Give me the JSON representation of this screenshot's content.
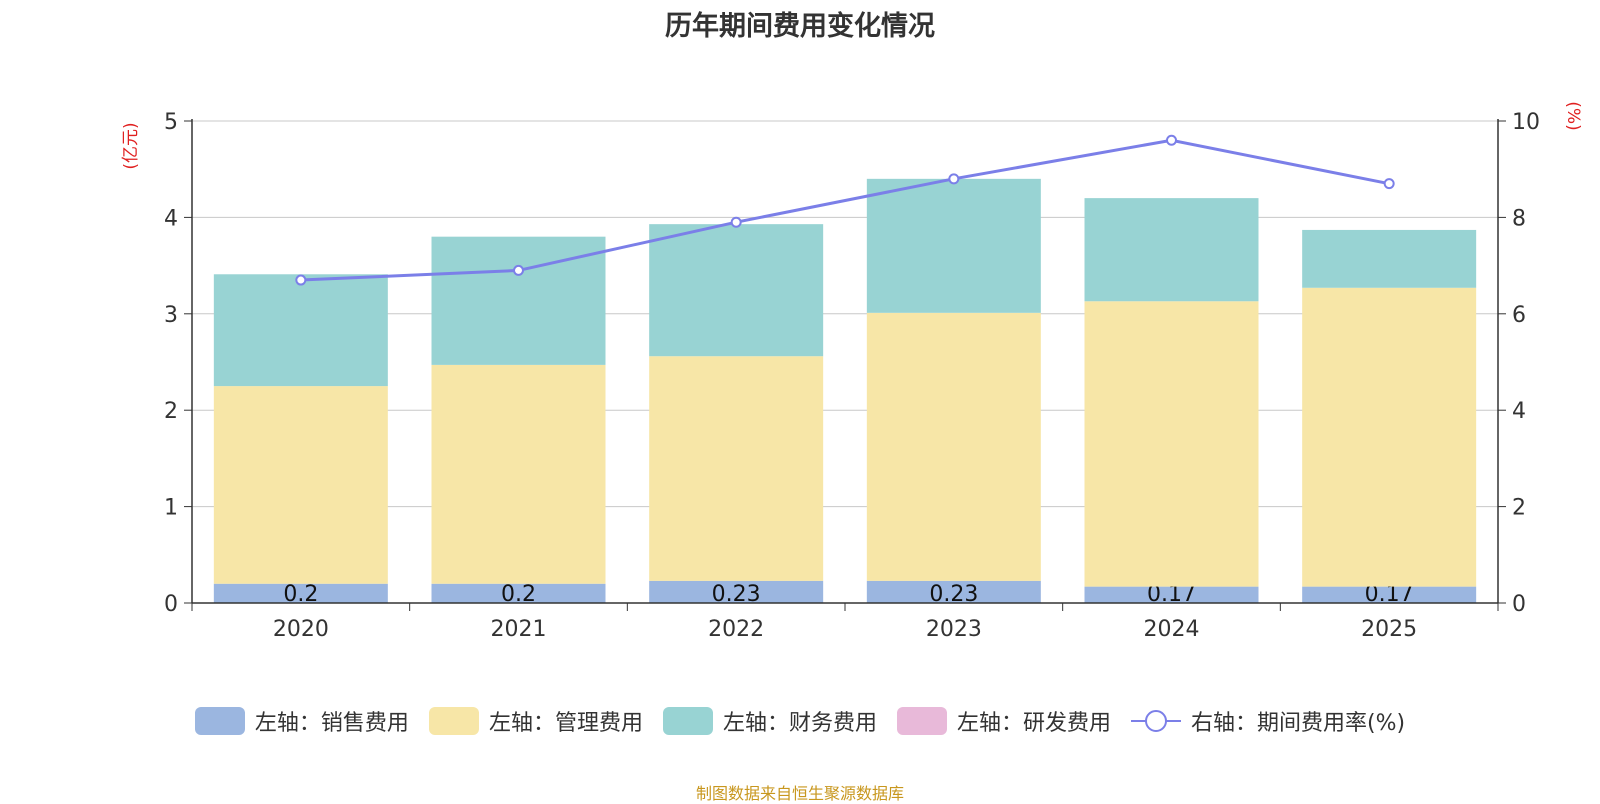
{
  "chart_data": {
    "type": "bar",
    "title": "历年期间费用变化情况",
    "categories": [
      "2020",
      "2021",
      "2022",
      "2023",
      "2024",
      "2025"
    ],
    "series": [
      {
        "name": "左轴：销售费用",
        "axis": "left",
        "color": "#9bb6e0",
        "values": [
          0.2,
          0.2,
          0.23,
          0.23,
          0.17,
          0.17
        ],
        "labels": [
          "0.2",
          "0.2",
          "0.23",
          "0.23",
          "0.17",
          "0.17"
        ]
      },
      {
        "name": "左轴：管理费用",
        "axis": "left",
        "color": "#f7e6a7",
        "values": [
          2.05,
          2.27,
          2.33,
          2.78,
          2.96,
          3.1
        ]
      },
      {
        "name": "左轴：财务费用",
        "axis": "left",
        "color": "#98d3d3",
        "values": [
          1.16,
          1.33,
          1.37,
          1.39,
          1.07,
          0.6
        ]
      },
      {
        "name": "左轴：研发费用",
        "axis": "left",
        "color": "#e8b9d9",
        "values": [
          0,
          0,
          0,
          0,
          0,
          0
        ]
      },
      {
        "name": "右轴：期间费用率(%)",
        "axis": "right",
        "type": "line",
        "color": "#7b7fe8",
        "values": [
          6.7,
          6.9,
          7.9,
          8.8,
          9.6,
          8.7
        ]
      }
    ],
    "ylabel_left": "(亿元)",
    "ylabel_right": "(%)",
    "ylim_left": [
      0,
      5
    ],
    "ylim_right": [
      0,
      10
    ],
    "yticks_left": [
      "0",
      "1",
      "2",
      "3",
      "4",
      "5"
    ],
    "yticks_right": [
      "0",
      "2",
      "4",
      "6",
      "8",
      "10"
    ],
    "grid": true,
    "legend_position": "bottom"
  },
  "source": "制图数据来自恒生聚源数据库"
}
